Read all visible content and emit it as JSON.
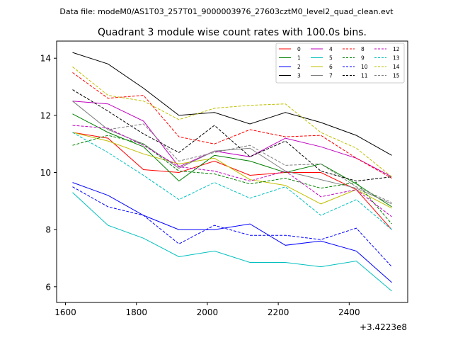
{
  "chart_data": {
    "type": "line",
    "suptitle": "Data file: modeM0/AS1T03_257T01_9000003976_27603cztM0_level2_quad_clean.evt",
    "title": "Quadrant 3 module wise count rates with 100.0s bins.",
    "xlabel": "",
    "ylabel": "",
    "offset_label": "+3.4223e8",
    "xlim": [
      1575,
      2565
    ],
    "ylim": [
      5.45,
      14.6
    ],
    "xticks": [
      1600,
      1800,
      2000,
      2200,
      2400
    ],
    "yticks": [
      6,
      8,
      10,
      12,
      14
    ],
    "x": [
      1620,
      1720,
      1820,
      1920,
      2020,
      2120,
      2220,
      2320,
      2420,
      2520
    ],
    "legend_position": "top-right",
    "series": [
      {
        "name": "0",
        "color": "#ff0000",
        "dash": "solid",
        "values": [
          11.4,
          11.2,
          10.1,
          10.0,
          10.4,
          9.9,
          10.0,
          10.0,
          9.4,
          8.0
        ]
      },
      {
        "name": "1",
        "color": "#008000",
        "dash": "solid",
        "values": [
          12.05,
          11.4,
          10.9,
          9.7,
          10.6,
          10.4,
          10.0,
          10.3,
          9.6,
          8.8
        ]
      },
      {
        "name": "2",
        "color": "#0000ff",
        "dash": "solid",
        "values": [
          9.65,
          9.2,
          8.5,
          8.0,
          8.0,
          8.2,
          7.45,
          7.6,
          7.25,
          6.15
        ]
      },
      {
        "name": "3",
        "color": "#000000",
        "dash": "solid",
        "values": [
          14.2,
          13.8,
          12.95,
          12.0,
          12.1,
          11.7,
          12.1,
          11.75,
          11.3,
          10.6
        ]
      },
      {
        "name": "4",
        "color": "#bf00bf",
        "dash": "solid",
        "values": [
          12.5,
          12.4,
          11.8,
          10.2,
          10.75,
          10.55,
          11.2,
          10.9,
          10.5,
          9.85
        ]
      },
      {
        "name": "5",
        "color": "#00bfbf",
        "dash": "solid",
        "values": [
          9.3,
          8.15,
          7.7,
          7.05,
          7.25,
          6.85,
          6.85,
          6.7,
          6.9,
          5.85
        ]
      },
      {
        "name": "6",
        "color": "#bfbf00",
        "dash": "solid",
        "values": [
          11.4,
          11.1,
          10.65,
          10.3,
          10.5,
          9.75,
          9.55,
          8.9,
          9.4,
          8.75
        ]
      },
      {
        "name": "7",
        "color": "#808080",
        "dash": "solid",
        "values": [
          12.5,
          11.5,
          11.0,
          10.15,
          10.75,
          10.85,
          10.05,
          9.75,
          9.45,
          8.9
        ]
      },
      {
        "name": "8",
        "color": "#ff0000",
        "dash": "dashed",
        "values": [
          13.5,
          12.6,
          12.7,
          11.25,
          11.0,
          11.5,
          11.25,
          11.3,
          10.5,
          9.8
        ]
      },
      {
        "name": "9",
        "color": "#008000",
        "dash": "dashed",
        "values": [
          10.95,
          11.3,
          11.0,
          10.05,
          9.95,
          9.6,
          9.8,
          9.45,
          9.65,
          8.2
        ]
      },
      {
        "name": "10",
        "color": "#0000ff",
        "dash": "dashed",
        "values": [
          9.5,
          8.8,
          8.5,
          7.5,
          8.15,
          7.8,
          7.8,
          7.65,
          8.05,
          6.7
        ]
      },
      {
        "name": "11",
        "color": "#000000",
        "dash": "dashed",
        "values": [
          12.9,
          12.15,
          11.35,
          10.7,
          11.65,
          10.55,
          11.1,
          10.05,
          9.7,
          9.85
        ]
      },
      {
        "name": "12",
        "color": "#bf00bf",
        "dash": "dashed",
        "values": [
          11.65,
          11.55,
          10.95,
          10.2,
          10.05,
          9.7,
          10.05,
          9.15,
          9.4,
          8.45
        ]
      },
      {
        "name": "13",
        "color": "#00bfbf",
        "dash": "dashed",
        "values": [
          11.4,
          10.7,
          9.9,
          9.05,
          9.65,
          9.1,
          9.5,
          8.5,
          9.05,
          8.0
        ]
      },
      {
        "name": "14",
        "color": "#bfbf00",
        "dash": "dashed",
        "values": [
          13.7,
          12.7,
          12.5,
          11.85,
          12.25,
          12.35,
          12.4,
          11.4,
          10.85,
          9.85
        ]
      },
      {
        "name": "15",
        "color": "#808080",
        "dash": "dashed",
        "values": [
          12.5,
          11.5,
          11.7,
          10.4,
          10.7,
          10.95,
          10.25,
          10.3,
          9.5,
          8.95
        ]
      }
    ]
  }
}
